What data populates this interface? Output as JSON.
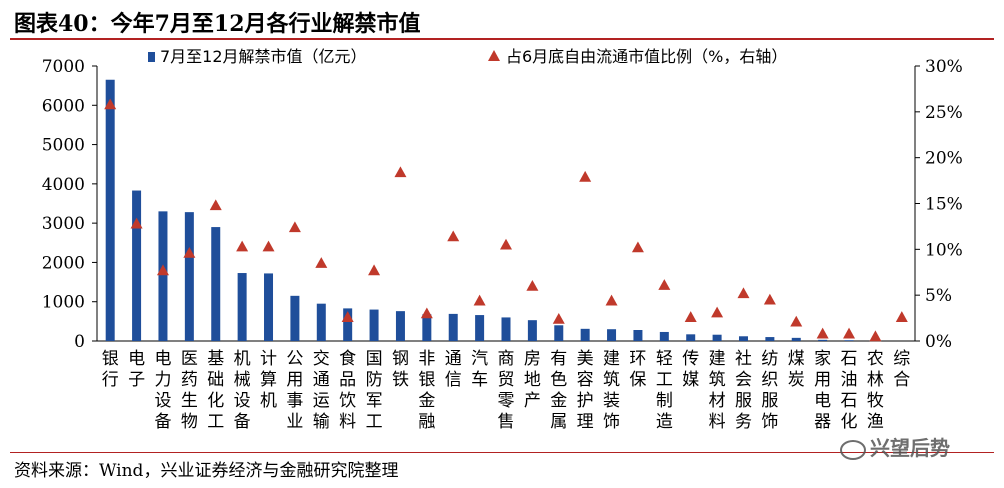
{
  "header": {
    "title": "图表40：今年7月至12月各行业解禁市值"
  },
  "footer": {
    "source": "资料来源：Wind，兴业证券经济与金融研究院整理",
    "watermark": "兴望后势"
  },
  "colors": {
    "bar": "#1f4e9a",
    "marker": "#c0392b",
    "accent_line": "#b22222"
  },
  "chart_data": {
    "type": "bar",
    "title": "",
    "xlabel": "",
    "ylabel": "",
    "legend_position": "top",
    "grid": false,
    "categories": [
      "银行",
      "电子",
      "电力设备",
      "医药生物",
      "基础化工",
      "机械设备",
      "计算机",
      "公用事业",
      "交通运输",
      "食品饮料",
      "国防军工",
      "钢铁",
      "非银金融",
      "通信",
      "汽车",
      "商贸零售",
      "房地产",
      "有色金属",
      "美容护理",
      "建筑装饰",
      "环保",
      "轻工制造",
      "传媒",
      "建筑材料",
      "社会服务",
      "纺织服饰",
      "煤炭",
      "家用电器",
      "石油石化",
      "农林牧渔",
      "综合"
    ],
    "ylim": [
      0,
      7000
    ],
    "yticks": [
      "0",
      "1000",
      "2000",
      "3000",
      "4000",
      "5000",
      "6000",
      "7000"
    ],
    "y2lim": [
      0,
      30
    ],
    "y2ticks": [
      "0%",
      "5%",
      "10%",
      "15%",
      "20%",
      "25%",
      "30%"
    ],
    "series": [
      {
        "name": "7月至12月解禁市值（亿元）",
        "type": "bar",
        "axis": "left",
        "values": [
          6650,
          3830,
          3300,
          3280,
          2900,
          1730,
          1720,
          1150,
          950,
          830,
          800,
          760,
          680,
          690,
          660,
          600,
          530,
          400,
          310,
          300,
          280,
          230,
          170,
          160,
          120,
          100,
          80,
          30,
          20,
          10,
          0
        ]
      },
      {
        "name": "占6月底自由流通市值比例（%，右轴）",
        "type": "scatter",
        "axis": "right",
        "values": [
          25.8,
          12.8,
          7.7,
          9.6,
          14.8,
          10.3,
          10.3,
          12.4,
          8.5,
          2.6,
          7.7,
          18.4,
          3.0,
          11.4,
          4.4,
          10.5,
          6.0,
          2.4,
          17.9,
          4.4,
          10.2,
          6.1,
          2.6,
          3.1,
          5.2,
          4.5,
          2.1,
          0.8,
          0.8,
          0.5,
          2.6
        ]
      }
    ]
  }
}
